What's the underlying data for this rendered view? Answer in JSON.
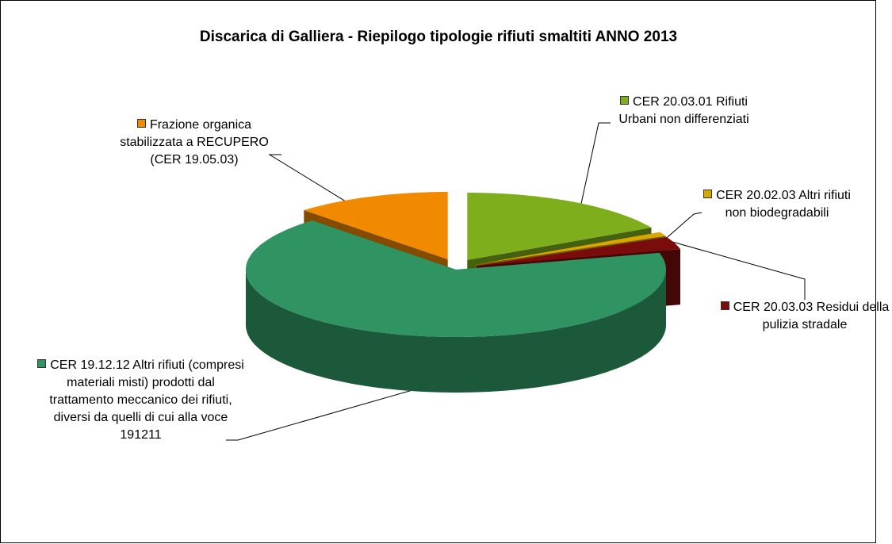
{
  "chart_data": {
    "type": "pie3d",
    "title": "Discarica di Galliera - Riepilogo tipologie rifiuti smaltiti ANNO 2013",
    "categories": [
      "CER 20.03.01 Rifiuti Urbani non differenziati",
      "CER 20.02.03 Altri rifiuti non biodegradabili",
      "CER 20.03.03 Residui della pulizia stradale",
      "CER 19.12.12 Altri rifiuti (compresi materiali misti) prodotti dal trattamento meccanico dei rifiuti, diversi da quelli di cui alla voce 191211",
      "Frazione organica stabilizzata a RECUPERO (CER 19.05.03)"
    ],
    "values": [
      17,
      1,
      3,
      67,
      12
    ],
    "colors": [
      "#7eae1c",
      "#d9a800",
      "#7a0c0c",
      "#2f9462",
      "#f28a00"
    ]
  }
}
